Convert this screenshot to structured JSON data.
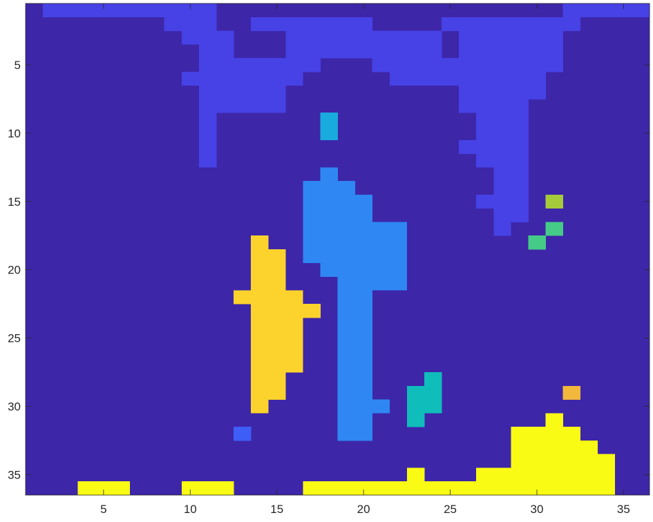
{
  "chart_data": {
    "type": "heatmap",
    "title": "",
    "xlabel": "",
    "ylabel": "",
    "xlim": [
      0.5,
      36.5
    ],
    "ylim": [
      36.5,
      0.5
    ],
    "y_reversed": true,
    "grid": false,
    "colormap": "parula",
    "xticks": [
      5,
      10,
      15,
      20,
      25,
      30,
      35
    ],
    "yticks": [
      5,
      10,
      15,
      20,
      25,
      30,
      35
    ],
    "background_level": 0,
    "level_colors": {
      "0": "#3E26A8",
      "1": "#4642E6",
      "2": "#3D5EF7",
      "3": "#2E87F2",
      "4": "#19ABDE",
      "5": "#0FBDBB",
      "6": "#45CB87",
      "7": "#A5CB3B",
      "8": "#F1B83C",
      "9": "#FBD32C",
      "10": "#F9FB14"
    },
    "region_rows": [
      {
        "level": 1,
        "runs": [
          [
            1,
            2,
            11
          ],
          [
            1,
            32,
            36
          ]
        ]
      },
      {
        "level": 1,
        "runs": [
          [
            2,
            9,
            11
          ],
          [
            2,
            14,
            20
          ],
          [
            2,
            25,
            32
          ]
        ]
      },
      {
        "level": 1,
        "runs": [
          [
            3,
            10,
            12
          ],
          [
            3,
            16,
            24
          ],
          [
            3,
            26,
            31
          ]
        ]
      },
      {
        "level": 1,
        "runs": [
          [
            4,
            11,
            12
          ],
          [
            4,
            16,
            24
          ],
          [
            4,
            26,
            31
          ]
        ]
      },
      {
        "level": 1,
        "runs": [
          [
            5,
            11,
            17
          ],
          [
            5,
            21,
            31
          ]
        ]
      },
      {
        "level": 1,
        "runs": [
          [
            6,
            10,
            16
          ],
          [
            6,
            22,
            30
          ]
        ]
      },
      {
        "level": 1,
        "runs": [
          [
            7,
            11,
            15
          ],
          [
            7,
            26,
            30
          ]
        ]
      },
      {
        "level": 1,
        "runs": [
          [
            8,
            11,
            15
          ],
          [
            8,
            26,
            29
          ]
        ]
      },
      {
        "level": 1,
        "runs": [
          [
            9,
            11,
            11
          ],
          [
            9,
            27,
            29
          ]
        ]
      },
      {
        "level": 1,
        "runs": [
          [
            10,
            11,
            11
          ],
          [
            10,
            27,
            29
          ]
        ]
      },
      {
        "level": 1,
        "runs": [
          [
            11,
            11,
            11
          ],
          [
            11,
            26,
            29
          ]
        ]
      },
      {
        "level": 1,
        "runs": [
          [
            12,
            11,
            11
          ],
          [
            12,
            27,
            29
          ]
        ]
      },
      {
        "level": 1,
        "runs": [
          [
            13,
            28,
            29
          ]
        ]
      },
      {
        "level": 1,
        "runs": [
          [
            14,
            28,
            29
          ]
        ]
      },
      {
        "level": 1,
        "runs": [
          [
            15,
            27,
            29
          ]
        ]
      },
      {
        "level": 1,
        "runs": [
          [
            16,
            28,
            29
          ]
        ]
      },
      {
        "level": 1,
        "runs": [
          [
            17,
            28,
            28
          ]
        ]
      },
      {
        "level": 4,
        "runs": [
          [
            9,
            18,
            18
          ],
          [
            10,
            18,
            18
          ]
        ]
      },
      {
        "level": 3,
        "runs": [
          [
            13,
            18,
            18
          ],
          [
            14,
            17,
            19
          ],
          [
            15,
            17,
            20
          ],
          [
            16,
            17,
            20
          ],
          [
            17,
            17,
            22
          ],
          [
            18,
            17,
            22
          ],
          [
            19,
            17,
            22
          ],
          [
            20,
            18,
            22
          ],
          [
            21,
            19,
            22
          ],
          [
            22,
            19,
            20
          ],
          [
            23,
            19,
            20
          ],
          [
            24,
            19,
            20
          ],
          [
            25,
            19,
            20
          ],
          [
            26,
            19,
            20
          ],
          [
            27,
            19,
            20
          ],
          [
            28,
            19,
            20
          ],
          [
            29,
            19,
            20
          ],
          [
            30,
            19,
            21
          ],
          [
            31,
            19,
            20
          ],
          [
            32,
            19,
            20
          ]
        ]
      },
      {
        "level": 9,
        "runs": [
          [
            18,
            14,
            14
          ],
          [
            19,
            14,
            15
          ],
          [
            20,
            14,
            15
          ],
          [
            21,
            14,
            15
          ],
          [
            22,
            13,
            16
          ],
          [
            23,
            14,
            17
          ],
          [
            24,
            14,
            16
          ],
          [
            25,
            14,
            16
          ],
          [
            26,
            14,
            16
          ],
          [
            27,
            14,
            16
          ],
          [
            28,
            14,
            15
          ],
          [
            29,
            14,
            15
          ],
          [
            30,
            14,
            14
          ]
        ]
      },
      {
        "level": 2,
        "runs": [
          [
            32,
            13,
            13
          ]
        ]
      },
      {
        "level": 5,
        "runs": [
          [
            28,
            24,
            24
          ],
          [
            29,
            23,
            24
          ],
          [
            30,
            23,
            24
          ],
          [
            31,
            23,
            23
          ]
        ]
      },
      {
        "level": 7,
        "runs": [
          [
            15,
            31,
            31
          ]
        ]
      },
      {
        "level": 6,
        "runs": [
          [
            17,
            31,
            31
          ],
          [
            18,
            30,
            30
          ]
        ]
      },
      {
        "level": 8,
        "runs": [
          [
            29,
            32,
            32
          ]
        ]
      },
      {
        "level": 10,
        "runs": [
          [
            31,
            31,
            31
          ],
          [
            32,
            29,
            32
          ],
          [
            33,
            29,
            33
          ],
          [
            34,
            29,
            34
          ],
          [
            35,
            23,
            23
          ],
          [
            35,
            27,
            34
          ],
          [
            36,
            4,
            6
          ],
          [
            36,
            10,
            12
          ],
          [
            36,
            17,
            34
          ]
        ]
      }
    ]
  }
}
